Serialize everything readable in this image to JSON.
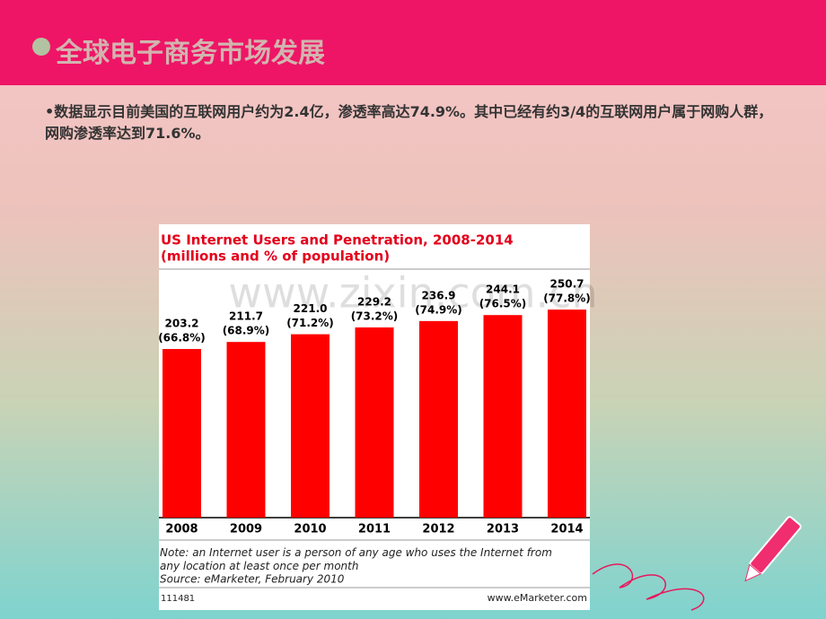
{
  "slide_title": "全球电子商务市场发展",
  "bullet": "•数据显示目前美国的互联网用户约为2.4亿，渗透率高达74.9%。其中已经有约3/4的互联网用户属于网购人群，网购渗透率达到71.6%。",
  "watermark": "www.zixin.com.cn",
  "chart_data": {
    "type": "bar",
    "title": "US Internet Users and Penetration, 2008-2014",
    "subtitle": "(millions and % of population)",
    "categories": [
      "2008",
      "2009",
      "2010",
      "2011",
      "2012",
      "2013",
      "2014"
    ],
    "values": [
      203.2,
      211.7,
      221.0,
      229.2,
      236.9,
      244.1,
      250.7
    ],
    "value_labels": [
      "203.2",
      "211.7",
      "221.0",
      "229.2",
      "236.9",
      "244.1",
      "250.7"
    ],
    "penetration_labels": [
      "(66.8%)",
      "(68.9%)",
      "(71.2%)",
      "(73.2%)",
      "(74.9%)",
      "(76.5%)",
      "(77.8%)"
    ],
    "color": "#ff0000",
    "note": "Note: an Internet user is a person of any age who uses the Internet from any location at least once per month",
    "source": "Source: eMarketer, February 2010",
    "chart_id": "111481",
    "site": "www.eMarketer.com"
  }
}
